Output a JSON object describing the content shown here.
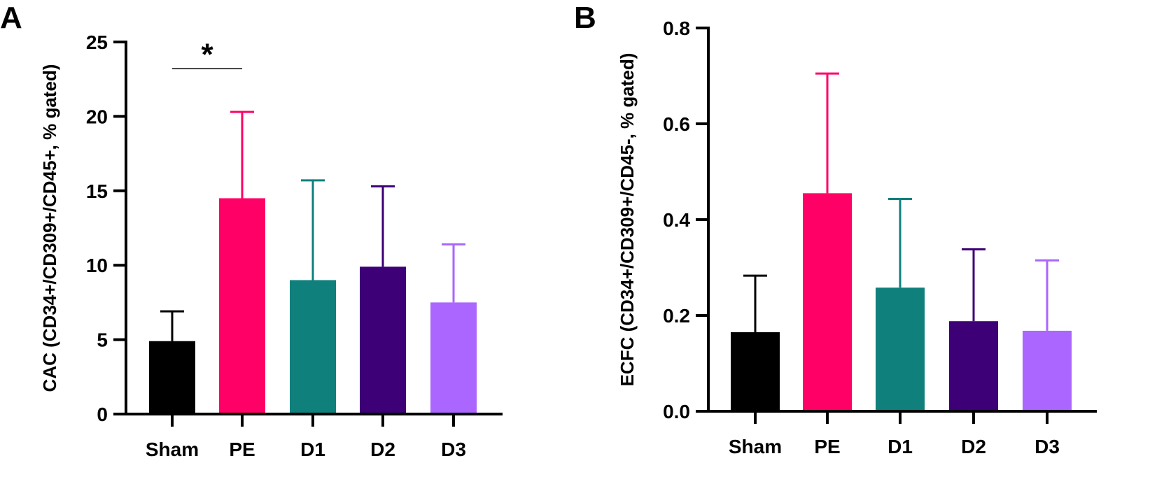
{
  "colors": {
    "Sham": "#000000",
    "PE": "#ff0066",
    "D1": "#10807c",
    "D2": "#3d0076",
    "D3": "#aa66ff"
  },
  "chart_data": [
    {
      "panel": "A",
      "type": "bar",
      "categories": [
        "Sham",
        "PE",
        "D1",
        "D2",
        "D3"
      ],
      "values": [
        4.9,
        14.5,
        9.0,
        9.9,
        7.5
      ],
      "errors": [
        2.0,
        5.8,
        6.7,
        5.4,
        3.9
      ],
      "ylabel": "CAC (CD34+/CD309+/CD45+, % gated)",
      "ylim": [
        0,
        25
      ],
      "yticks": [
        0,
        5,
        10,
        15,
        20,
        25
      ],
      "ytick_labels": [
        "0",
        "5",
        "10",
        "15",
        "20",
        "25"
      ],
      "significance": {
        "from": "Sham",
        "to": "PE",
        "level": 23.2,
        "label": "*"
      }
    },
    {
      "panel": "B",
      "type": "bar",
      "categories": [
        "Sham",
        "PE",
        "D1",
        "D2",
        "D3"
      ],
      "values": [
        0.165,
        0.455,
        0.258,
        0.188,
        0.168
      ],
      "errors": [
        0.118,
        0.25,
        0.185,
        0.15,
        0.147
      ],
      "ylabel": "ECFC (CD34+/CD309+/CD45-, % gated)",
      "ylim": [
        0,
        0.8
      ],
      "yticks": [
        0,
        0.2,
        0.4,
        0.6,
        0.8
      ],
      "ytick_labels": [
        "0.0",
        "0.2",
        "0.4",
        "0.6",
        "0.8"
      ]
    }
  ]
}
